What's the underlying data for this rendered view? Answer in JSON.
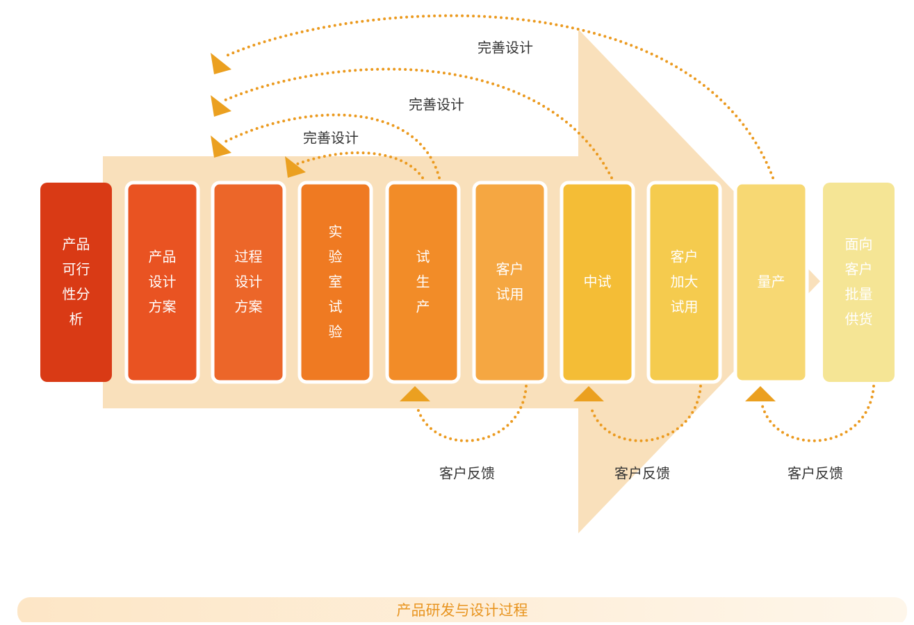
{
  "steps": [
    {
      "lines": [
        "产品",
        "可行",
        "性分",
        "析"
      ],
      "color": "#d93a15"
    },
    {
      "lines": [
        "产品",
        "设计",
        "方案"
      ],
      "color": "#e95322"
    },
    {
      "lines": [
        "过程",
        "设计",
        "方案"
      ],
      "color": "#ec6629"
    },
    {
      "lines": [
        "实",
        "验",
        "室",
        "试",
        "验"
      ],
      "color": "#ef7a22"
    },
    {
      "lines": [
        "试",
        "生",
        "产"
      ],
      "color": "#f28c28"
    },
    {
      "lines": [
        "客户",
        "试用"
      ],
      "color": "#f5a742"
    },
    {
      "lines": [
        "中试"
      ],
      "color": "#f4bd36"
    },
    {
      "lines": [
        "客户",
        "加大",
        "试用"
      ],
      "color": "#f5cb4e"
    },
    {
      "lines": [
        "量产"
      ],
      "color": "#f7d873"
    },
    {
      "lines": [
        "面向",
        "客户",
        "批量",
        "供货"
      ],
      "color": "#f5e595"
    }
  ],
  "improve_labels": [
    "完善设计",
    "完善设计",
    "完善设计"
  ],
  "feedback_labels": [
    "客户反馈",
    "客户反馈",
    "客户反馈"
  ],
  "footer": "产品研发与设计过程"
}
